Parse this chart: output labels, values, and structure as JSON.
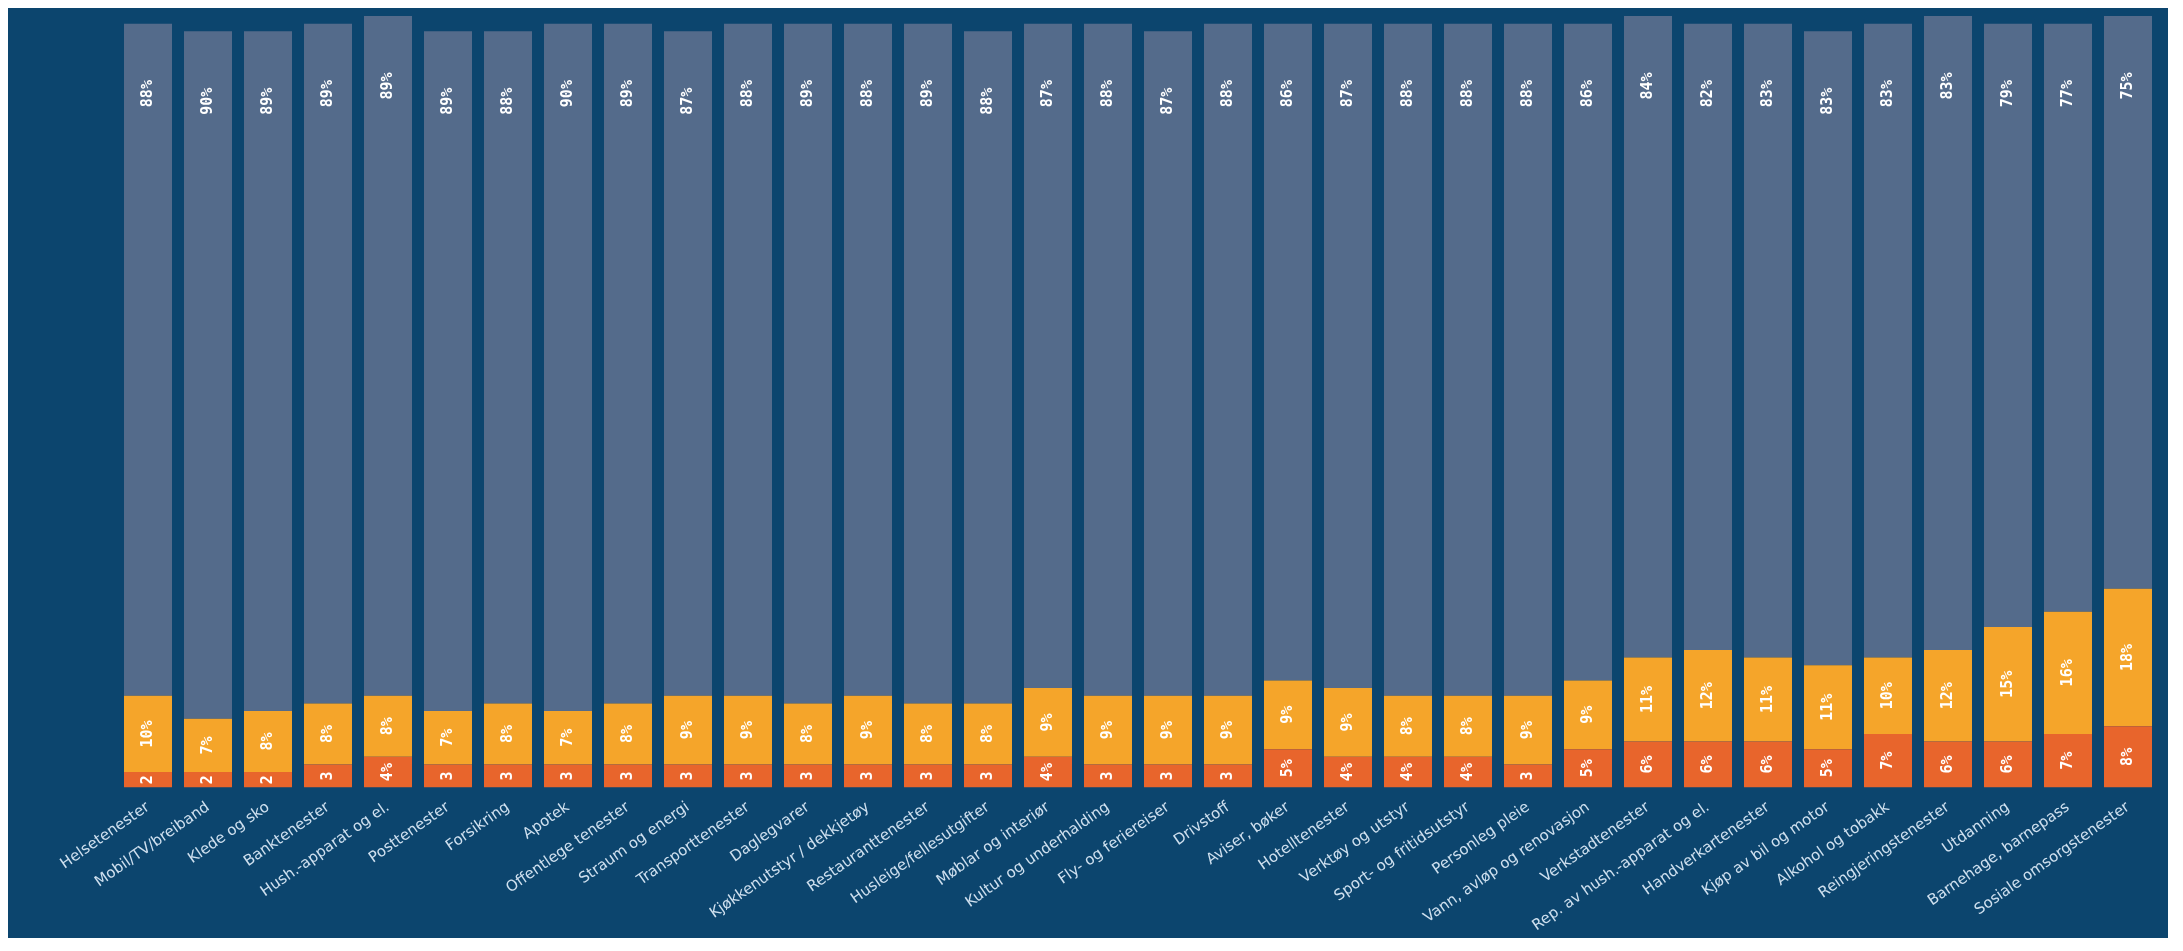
{
  "chart_data": {
    "type": "bar",
    "stacked": true,
    "tick_labels": "x",
    "grid": false,
    "legend": false,
    "ylim": [
      0,
      101
    ],
    "categories": [
      "Helsetenester",
      "Mobil/TV/breiband",
      "Klede og sko",
      "Banktenester",
      "Hush.-apparat og el.",
      "Posttenester",
      "Forsikring",
      "Apotek",
      "Offentlege tenester",
      "Straum og energi",
      "Transporttenester",
      "Daglegvarer",
      "Kjøkkenutstyr / dekkjetøy",
      "Restauranttenester",
      "Husleige/fellesutgifter",
      "Møblar og interiør",
      "Kultur og underhalding",
      "Fly- og feriereiser",
      "Drivstoff",
      "Aviser, bøker",
      "Hotelltenester",
      "Verktøy og utstyr",
      "Sport- og fritidsutstyr",
      "Personleg pleie",
      "Vann, avløp og renovasjon",
      "Verkstadtenester",
      "Rep. av hush.-apparat og el.",
      "Handverkartenester",
      "Kjøp av bil og motor",
      "Alkohol og tobakk",
      "Reingjeringstenester",
      "Utdanning",
      "Barnehage, barnepass",
      "Sosiale omsorgstenester"
    ],
    "series": [
      {
        "color": "#e8652c",
        "values": [
          2,
          2,
          2,
          3,
          4,
          3,
          3,
          3,
          3,
          3,
          3,
          3,
          3,
          3,
          3,
          4,
          3,
          3,
          3,
          5,
          4,
          4,
          4,
          3,
          5,
          6,
          6,
          6,
          5,
          7,
          6,
          6,
          7,
          8
        ],
        "value_labels": [
          "2",
          "2",
          "2",
          "3",
          "4%",
          "3",
          "3",
          "3",
          "3",
          "3",
          "3",
          "3",
          "3",
          "3",
          "3",
          "4%",
          "3",
          "3",
          "3",
          "5%",
          "4%",
          "4%",
          "4%",
          "3",
          "5%",
          "6%",
          "6%",
          "6%",
          "5%",
          "7%",
          "6%",
          "6%",
          "7%",
          "8%"
        ]
      },
      {
        "color": "#f5a52a",
        "values": [
          10,
          7,
          8,
          8,
          8,
          7,
          8,
          7,
          8,
          9,
          9,
          8,
          9,
          8,
          8,
          9,
          9,
          9,
          9,
          9,
          9,
          8,
          8,
          9,
          9,
          11,
          12,
          11,
          11,
          10,
          12,
          15,
          16,
          18
        ],
        "value_labels": [
          "10%",
          "7%",
          "8%",
          "8%",
          "8%",
          "7%",
          "8%",
          "7%",
          "8%",
          "9%",
          "9%",
          "8%",
          "9%",
          "8%",
          "8%",
          "9%",
          "9%",
          "9%",
          "9%",
          "9%",
          "9%",
          "8%",
          "8%",
          "9%",
          "9%",
          "11%",
          "12%",
          "11%",
          "11%",
          "10%",
          "12%",
          "15%",
          "16%",
          "18%"
        ]
      },
      {
        "color": "#546b8b",
        "values": [
          88,
          90,
          89,
          89,
          89,
          89,
          88,
          90,
          89,
          87,
          88,
          89,
          88,
          89,
          88,
          87,
          88,
          87,
          88,
          86,
          87,
          88,
          88,
          88,
          86,
          84,
          82,
          83,
          83,
          83,
          83,
          79,
          77,
          75
        ],
        "value_labels": [
          "88%",
          "90%",
          "89%",
          "89%",
          "89%",
          "89%",
          "88%",
          "90%",
          "89%",
          "87%",
          "88%",
          "89%",
          "88%",
          "89%",
          "88%",
          "87%",
          "88%",
          "87%",
          "88%",
          "86%",
          "87%",
          "88%",
          "88%",
          "88%",
          "86%",
          "84%",
          "82%",
          "83%",
          "83%",
          "83%",
          "83%",
          "79%",
          "77%",
          "75%"
        ]
      }
    ]
  }
}
